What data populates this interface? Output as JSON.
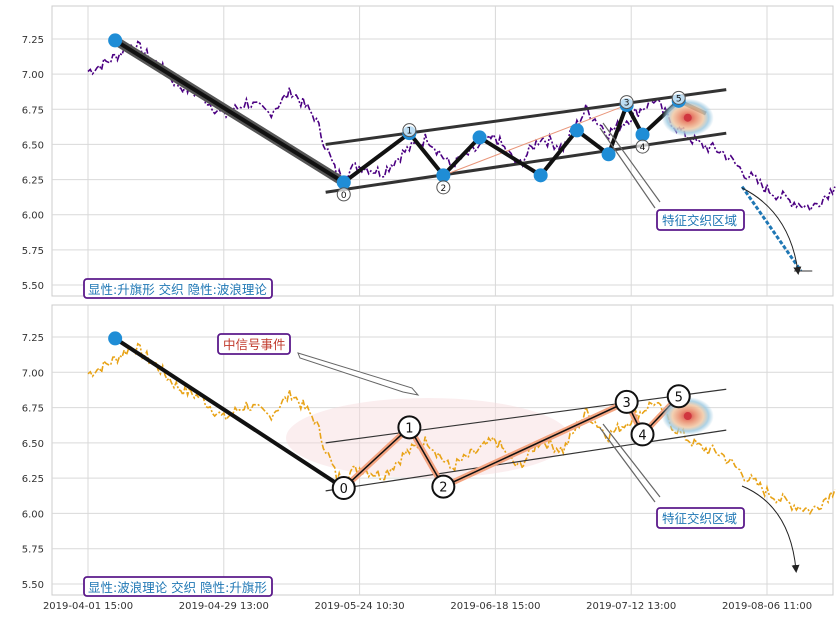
{
  "chart_data": [
    {
      "type": "line",
      "panel": "top",
      "ylim": [
        5.42,
        7.45
      ],
      "yticks": [
        "7.25",
        "7.00",
        "6.75",
        "6.50",
        "6.25",
        "6.00",
        "5.75",
        "5.50"
      ],
      "ytick_values": [
        7.25,
        7.0,
        6.75,
        6.5,
        6.25,
        6.0,
        5.75,
        5.5
      ],
      "grid": true,
      "line_color": "#4b0082",
      "price_anchors": [
        [
          0,
          7.02
        ],
        [
          1,
          7.1
        ],
        [
          2,
          7.22
        ],
        [
          3,
          7.08
        ],
        [
          4,
          6.92
        ],
        [
          5,
          6.85
        ],
        [
          6,
          6.7
        ],
        [
          7,
          6.8
        ],
        [
          8,
          6.72
        ],
        [
          9,
          6.88
        ],
        [
          10,
          6.7
        ],
        [
          11,
          6.28
        ],
        [
          12,
          6.35
        ],
        [
          13,
          6.3
        ],
        [
          14,
          6.45
        ],
        [
          15,
          6.55
        ],
        [
          16,
          6.35
        ],
        [
          17,
          6.45
        ],
        [
          18,
          6.55
        ],
        [
          19,
          6.35
        ],
        [
          20,
          6.55
        ],
        [
          21,
          6.48
        ],
        [
          22,
          6.75
        ],
        [
          23,
          6.58
        ],
        [
          24,
          6.7
        ],
        [
          25,
          6.82
        ],
        [
          26,
          6.62
        ],
        [
          27,
          6.5
        ],
        [
          28,
          6.45
        ],
        [
          29,
          6.3
        ],
        [
          30,
          6.18
        ],
        [
          31,
          6.1
        ],
        [
          32,
          6.05
        ],
        [
          33,
          6.2
        ]
      ],
      "wave_points": [
        {
          "label": "0",
          "x": 11.3,
          "y": 6.23
        },
        {
          "label": "1",
          "x": 14.2,
          "y": 6.58
        },
        {
          "label": "2",
          "x": 15.7,
          "y": 6.28
        },
        {
          "label": "3",
          "x": 23.8,
          "y": 6.78
        },
        {
          "label": "4",
          "x": 24.5,
          "y": 6.57
        },
        {
          "label": "5",
          "x": 26.1,
          "y": 6.81
        }
      ],
      "extra_points": [
        [
          1.2,
          7.24
        ],
        [
          17.3,
          6.55
        ],
        [
          20.0,
          6.28
        ],
        [
          21.6,
          6.6
        ],
        [
          23.0,
          6.43
        ]
      ],
      "zigzag": [
        [
          11.3,
          6.23
        ],
        [
          14.2,
          6.58
        ],
        [
          15.7,
          6.28
        ],
        [
          17.3,
          6.55
        ],
        [
          20.0,
          6.28
        ],
        [
          21.6,
          6.6
        ],
        [
          23.0,
          6.43
        ],
        [
          23.8,
          6.78
        ],
        [
          24.5,
          6.57
        ],
        [
          26.1,
          6.81
        ],
        [
          27.3,
          6.72
        ]
      ],
      "channel": {
        "upper": [
          [
            10.5,
            6.5
          ],
          [
            28.2,
            6.89
          ]
        ],
        "lower": [
          [
            10.5,
            6.16
          ],
          [
            28.2,
            6.58
          ]
        ]
      },
      "legend_box": "显性:升旗形 交织 隐性:波浪理论",
      "feature_label": "特征交织区域"
    },
    {
      "type": "line",
      "panel": "bottom",
      "ylim": [
        5.42,
        7.45
      ],
      "yticks": [
        "7.25",
        "7.00",
        "6.75",
        "6.50",
        "6.25",
        "6.00",
        "5.75",
        "5.50"
      ],
      "ytick_values": [
        7.25,
        7.0,
        6.75,
        6.5,
        6.25,
        6.0,
        5.75,
        5.5
      ],
      "xticks": [
        "2019-04-01 15:00",
        "2019-04-29 13:00",
        "2019-05-24 10:30",
        "2019-06-18 15:00",
        "2019-07-12 13:00",
        "2019-08-06 11:00"
      ],
      "xtick_values": [
        0,
        6,
        12,
        18,
        24,
        30
      ],
      "grid": true,
      "line_color": "#e8a317",
      "wave_points": [
        {
          "label": "0",
          "x": 11.3,
          "y": 6.18
        },
        {
          "label": "1",
          "x": 14.2,
          "y": 6.61
        },
        {
          "label": "2",
          "x": 15.7,
          "y": 6.19
        },
        {
          "label": "3",
          "x": 23.8,
          "y": 6.79
        },
        {
          "label": "4",
          "x": 24.5,
          "y": 6.56
        },
        {
          "label": "5",
          "x": 26.1,
          "y": 6.83
        }
      ],
      "channel": {
        "upper": [
          [
            10.5,
            6.5
          ],
          [
            28.2,
            6.88
          ]
        ],
        "lower": [
          [
            10.5,
            6.16
          ],
          [
            28.2,
            6.59
          ]
        ]
      },
      "signal_label": "中信号事件",
      "legend_box": "显性:波浪理论 交织 隐性:升旗形",
      "feature_label": "特征交织区域"
    }
  ]
}
